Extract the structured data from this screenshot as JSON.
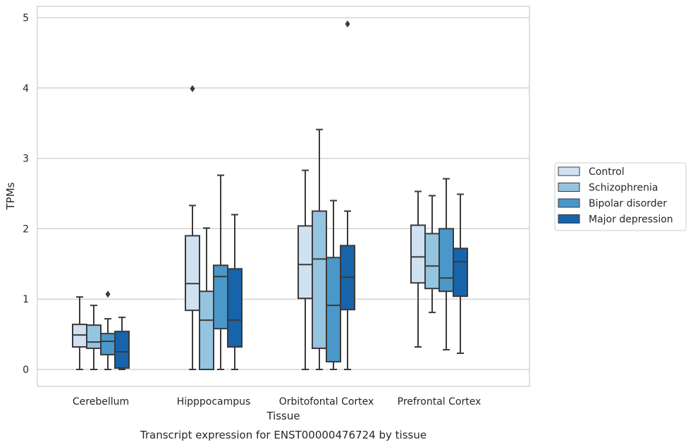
{
  "chart_data": {
    "type": "box",
    "title": "",
    "xlabel": "Tissue",
    "ylabel": "TPMs",
    "caption": "Transcript expression for ENST00000476724 by tissue",
    "ylim": [
      -0.23,
      5.17
    ],
    "yticks": [
      0,
      1,
      2,
      3,
      4,
      5
    ],
    "grid": true,
    "legend_position": "right",
    "categories": [
      "Cerebellum",
      "Hipppocampus",
      "Orbitofontal Cortex",
      "Prefrontal Cortex"
    ],
    "series": [
      {
        "name": "Control",
        "color": "#d0e1f2",
        "boxes": [
          {
            "whisker_low": 0.0,
            "q1": 0.32,
            "median": 0.49,
            "q3": 0.64,
            "whisker_high": 1.03,
            "outliers": []
          },
          {
            "whisker_low": 0.0,
            "q1": 0.84,
            "median": 1.22,
            "q3": 1.9,
            "whisker_high": 2.33,
            "outliers": [
              3.99
            ]
          },
          {
            "whisker_low": 0.0,
            "q1": 1.01,
            "median": 1.49,
            "q3": 2.04,
            "whisker_high": 2.83,
            "outliers": []
          },
          {
            "whisker_low": 0.32,
            "q1": 1.23,
            "median": 1.6,
            "q3": 2.05,
            "whisker_high": 2.53,
            "outliers": []
          }
        ]
      },
      {
        "name": "Schizophrenia",
        "color": "#94c4df",
        "boxes": [
          {
            "whisker_low": 0.0,
            "q1": 0.3,
            "median": 0.39,
            "q3": 0.63,
            "whisker_high": 0.91,
            "outliers": []
          },
          {
            "whisker_low": 0.0,
            "q1": 0.0,
            "median": 0.7,
            "q3": 1.11,
            "whisker_high": 2.01,
            "outliers": []
          },
          {
            "whisker_low": 0.0,
            "q1": 0.3,
            "median": 1.57,
            "q3": 2.25,
            "whisker_high": 3.41,
            "outliers": []
          },
          {
            "whisker_low": 0.81,
            "q1": 1.15,
            "median": 1.47,
            "q3": 1.93,
            "whisker_high": 2.47,
            "outliers": []
          }
        ]
      },
      {
        "name": "Bipolar disorder",
        "color": "#4a98c9",
        "boxes": [
          {
            "whisker_low": 0.0,
            "q1": 0.21,
            "median": 0.4,
            "q3": 0.51,
            "whisker_high": 0.72,
            "outliers": [
              1.07
            ]
          },
          {
            "whisker_low": 0.0,
            "q1": 0.58,
            "median": 1.32,
            "q3": 1.48,
            "whisker_high": 2.76,
            "outliers": []
          },
          {
            "whisker_low": 0.0,
            "q1": 0.11,
            "median": 0.91,
            "q3": 1.59,
            "whisker_high": 2.4,
            "outliers": []
          },
          {
            "whisker_low": 0.28,
            "q1": 1.11,
            "median": 1.3,
            "q3": 2.0,
            "whisker_high": 2.71,
            "outliers": []
          }
        ]
      },
      {
        "name": "Major depression",
        "color": "#1764ab",
        "boxes": [
          {
            "whisker_low": 0.0,
            "q1": 0.02,
            "median": 0.25,
            "q3": 0.54,
            "whisker_high": 0.74,
            "outliers": []
          },
          {
            "whisker_low": 0.0,
            "q1": 0.32,
            "median": 0.7,
            "q3": 1.43,
            "whisker_high": 2.2,
            "outliers": []
          },
          {
            "whisker_low": 0.0,
            "q1": 0.85,
            "median": 1.31,
            "q3": 1.76,
            "whisker_high": 2.25,
            "outliers": [
              4.91
            ]
          },
          {
            "whisker_low": 0.23,
            "q1": 1.04,
            "median": 1.53,
            "q3": 1.72,
            "whisker_high": 2.49,
            "outliers": []
          }
        ]
      }
    ]
  }
}
